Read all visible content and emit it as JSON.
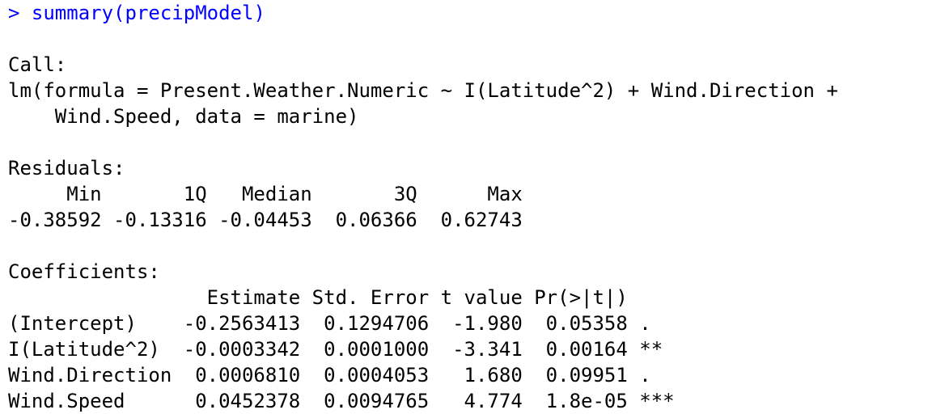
{
  "console": {
    "prompt": "> ",
    "command": "summary(precipModel)",
    "call_header": "Call:",
    "call_line1": "lm(formula = Present.Weather.Numeric ~ I(Latitude^2) + Wind.Direction +",
    "call_line2": "    Wind.Speed, data = marine)",
    "residuals_header": "Residuals:",
    "residuals_cols": "     Min       1Q   Median       3Q      Max ",
    "residuals_vals": "-0.38592 -0.13316 -0.04453  0.06366  0.62743 ",
    "coef_header": "Coefficients:",
    "coef_cols": "                 Estimate Std. Error t value Pr(>|t|)    ",
    "coef_rows": [
      "(Intercept)    -0.2563413  0.1294706  -1.980  0.05358 .  ",
      "I(Latitude^2)  -0.0003342  0.0001000  -3.341  0.00164 ** ",
      "Wind.Direction  0.0006810  0.0004053   1.680  0.09951 .  ",
      "Wind.Speed      0.0452378  0.0094765   4.774  1.8e-05 ***"
    ]
  },
  "colors": {
    "command": "#0000ff",
    "output": "#000000",
    "background": "#ffffff"
  }
}
